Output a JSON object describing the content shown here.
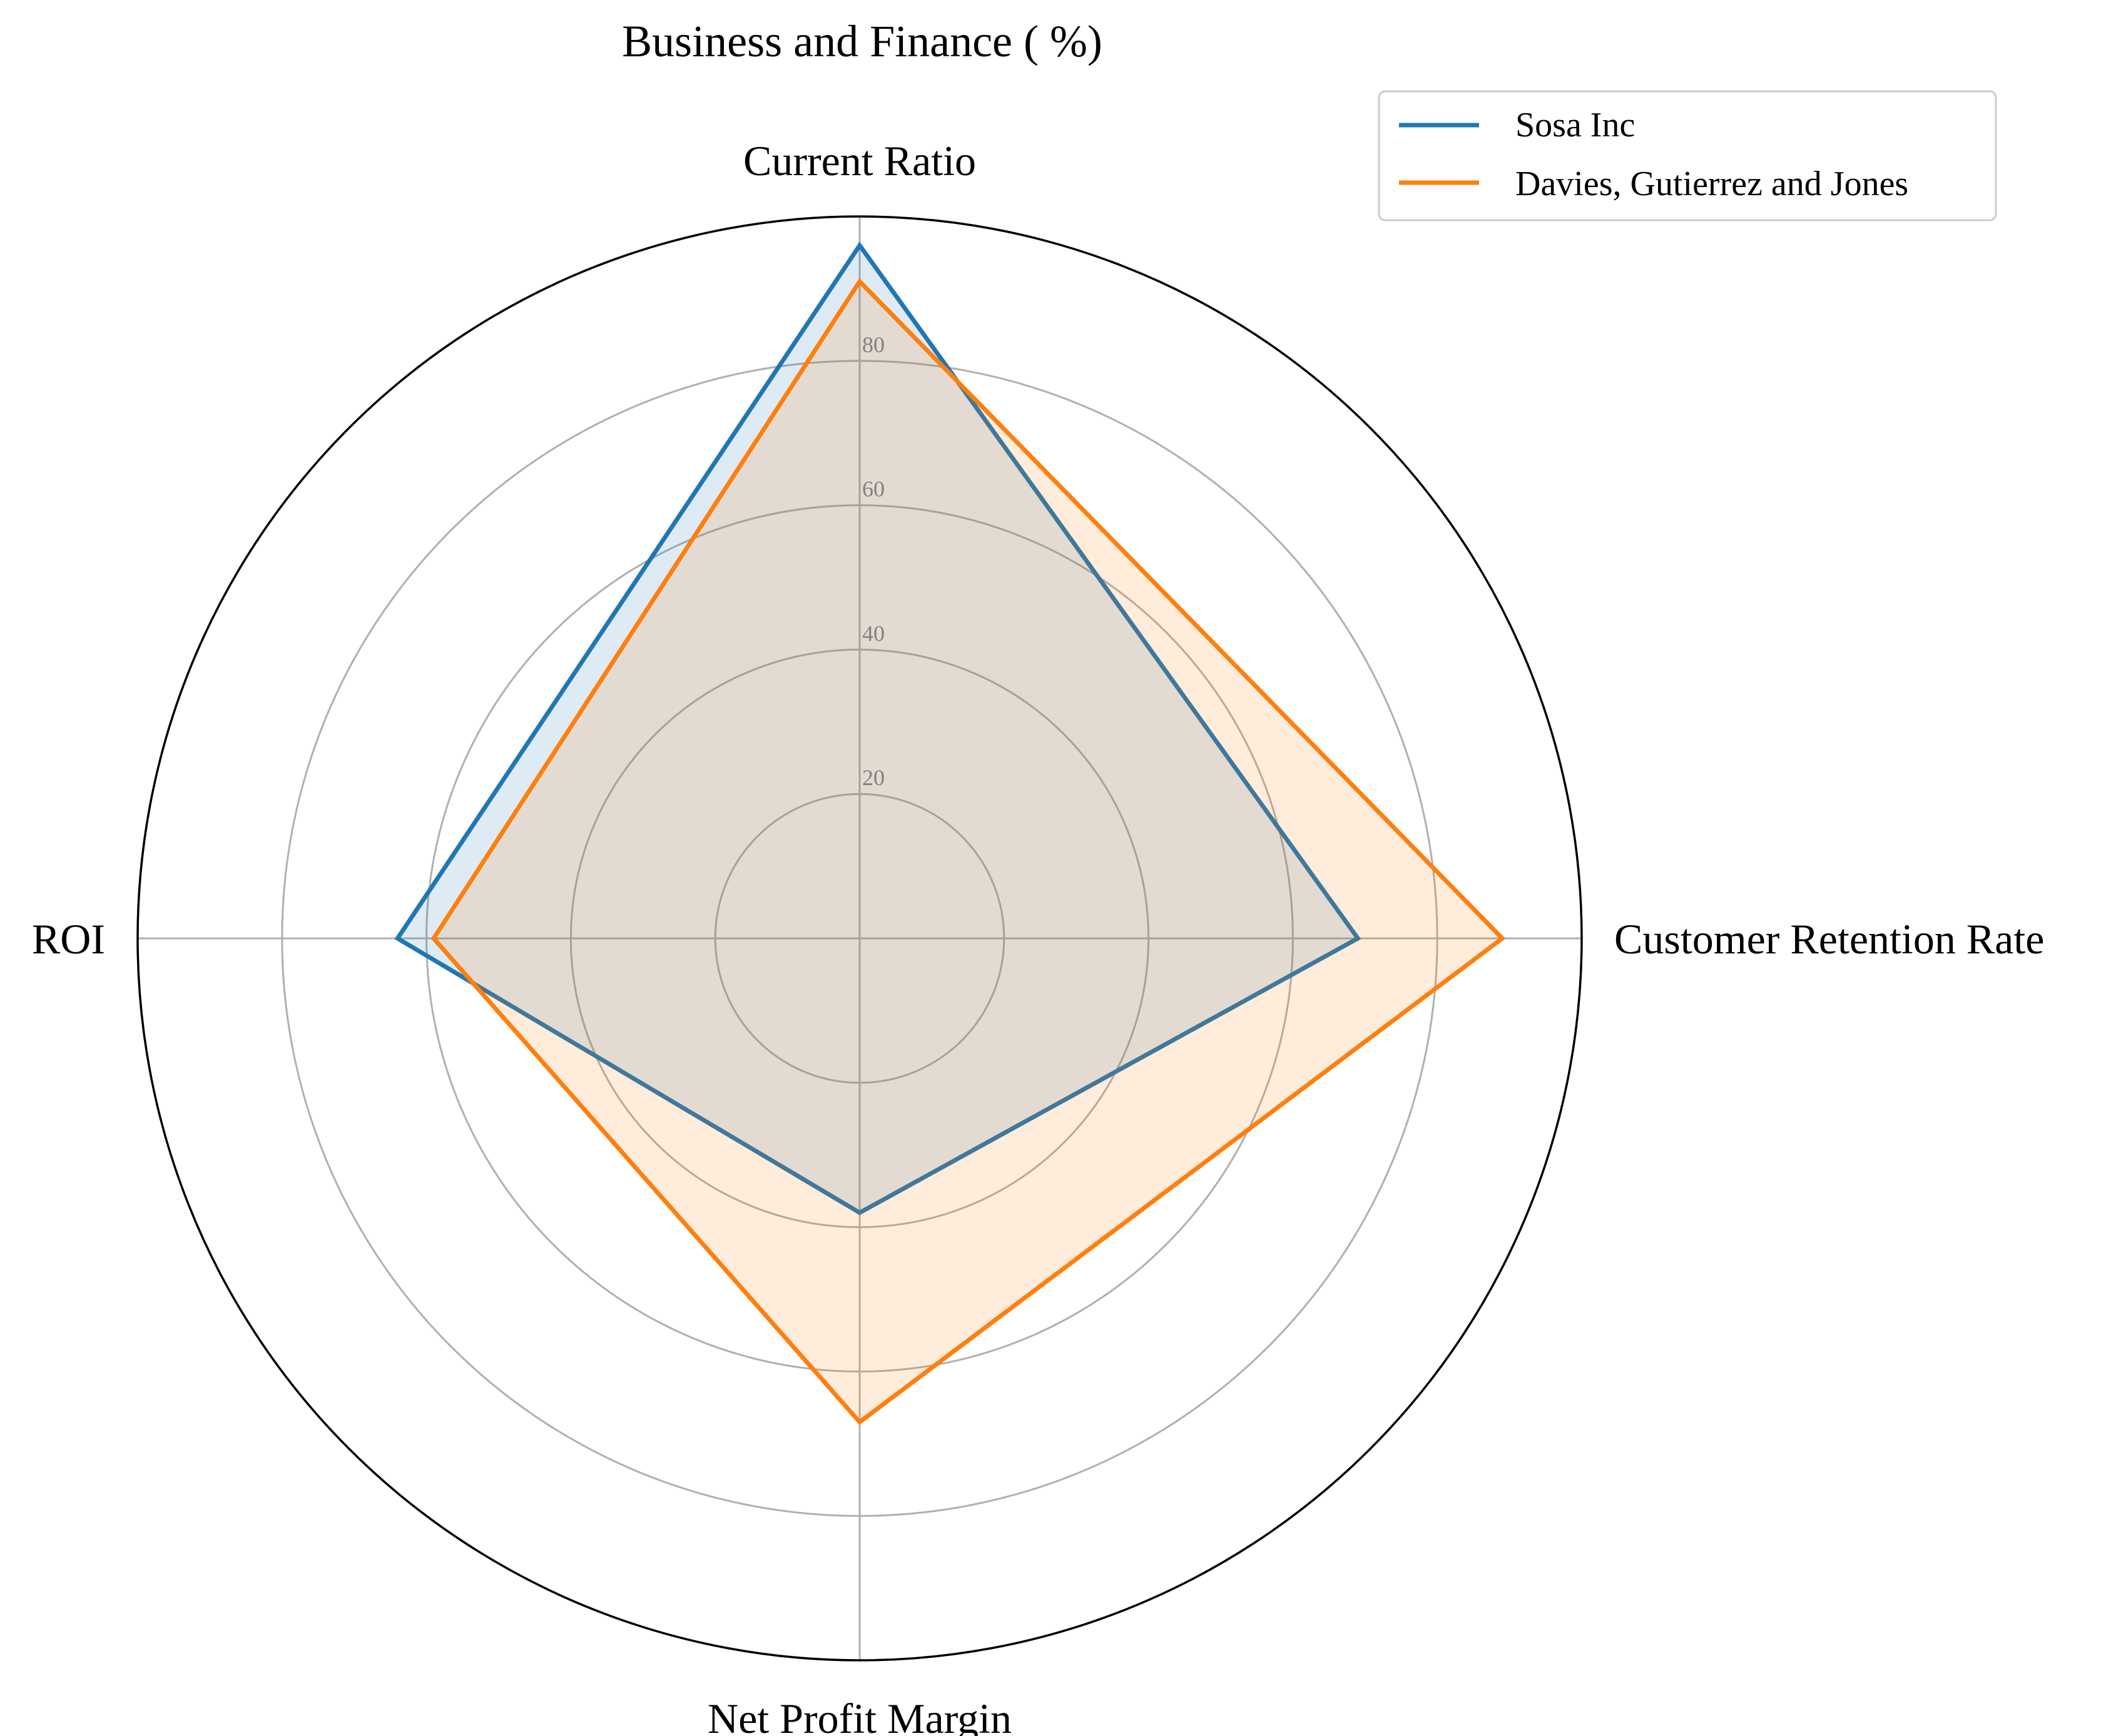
{
  "chart_data": {
    "type": "radar",
    "title": "Business and Finance ( %)",
    "categories": [
      "Current Ratio",
      "Customer Retention Rate",
      "Net Profit Margin",
      "ROI"
    ],
    "rlim": [
      0,
      100
    ],
    "r_ticks": [
      20,
      40,
      60,
      80
    ],
    "grid": true,
    "legend_position": "top-right",
    "series": [
      {
        "name": "Sosa Inc",
        "values": [
          96,
          69,
          38,
          64
        ],
        "color": "#1f77b4",
        "fill": "#1f77b4"
      },
      {
        "name": "Davies, Gutierrez and Jones",
        "values": [
          91,
          89,
          67,
          59
        ],
        "color": "#ff7f0e",
        "fill": "#ff7f0e"
      }
    ]
  }
}
